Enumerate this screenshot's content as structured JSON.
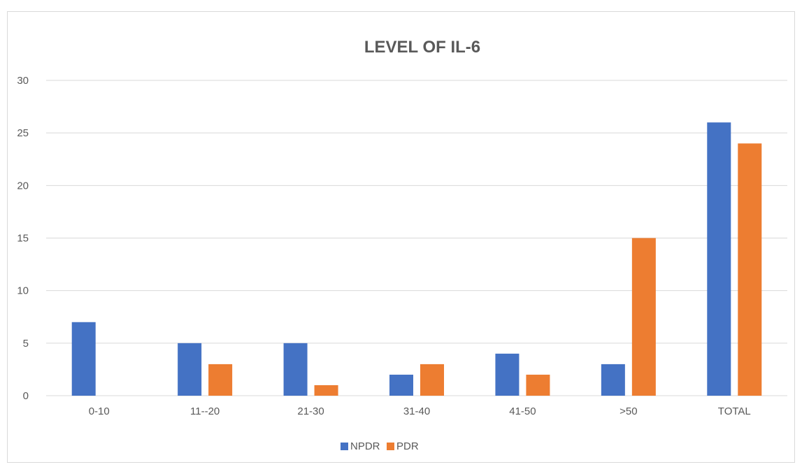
{
  "chart_data": {
    "type": "bar",
    "title": "LEVEL OF IL-6",
    "xlabel": "",
    "ylabel": "",
    "categories": [
      "0-10",
      "11--20",
      "21-30",
      "31-40",
      "41-50",
      ">50",
      "TOTAL"
    ],
    "series": [
      {
        "name": "NPDR",
        "color": "#4472c4",
        "values": [
          7,
          5,
          5,
          2,
          4,
          3,
          26
        ]
      },
      {
        "name": "PDR",
        "color": "#ed7d31",
        "values": [
          0,
          3,
          1,
          3,
          2,
          15,
          24
        ]
      }
    ],
    "ylim": [
      0,
      30
    ],
    "yticks": [
      "0",
      "5",
      "10",
      "15",
      "20",
      "25",
      "30"
    ],
    "grid": true,
    "legend_position": "bottom"
  }
}
